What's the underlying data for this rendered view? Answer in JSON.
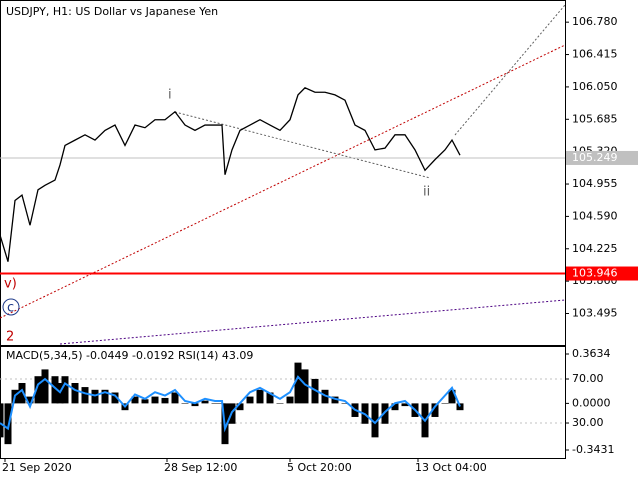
{
  "chart_data": [
    {
      "type": "line",
      "title": "USDJPY, H1:  US Dollar vs Japanese Yen",
      "x": [
        0,
        8,
        15,
        22,
        30,
        38,
        45,
        55,
        60,
        65,
        75,
        85,
        95,
        105,
        115,
        125,
        135,
        145,
        155,
        165,
        175,
        185,
        195,
        205,
        215,
        222,
        225,
        232,
        240,
        250,
        260,
        270,
        280,
        290,
        298,
        305,
        315,
        325,
        335,
        345,
        355,
        365,
        375,
        385,
        395,
        405,
        415,
        425,
        435,
        445,
        452,
        460
      ],
      "series": [
        {
          "color": "#000000",
          "values": [
            104.38,
            104.08,
            104.77,
            104.83,
            104.49,
            104.89,
            104.94,
            105.0,
            105.17,
            105.39,
            105.45,
            105.51,
            105.45,
            105.56,
            105.62,
            105.39,
            105.62,
            105.59,
            105.68,
            105.68,
            105.77,
            105.62,
            105.56,
            105.62,
            105.62,
            105.62,
            105.06,
            105.34,
            105.56,
            105.62,
            105.68,
            105.62,
            105.56,
            105.68,
            105.96,
            106.04,
            105.99,
            105.99,
            105.96,
            105.9,
            105.62,
            105.56,
            105.34,
            105.36,
            105.51,
            105.51,
            105.34,
            105.11,
            105.23,
            105.34,
            105.45,
            105.28
          ]
        }
      ],
      "xlim": [
        0,
        565
      ],
      "xticks": [
        {
          "value": 5,
          "label": "21 Sep 2020"
        },
        {
          "value": 167,
          "label": "28 Sep 12:00"
        },
        {
          "value": 290,
          "label": "5 Oct 20:00"
        },
        {
          "value": 418,
          "label": "13 Oct 04:00"
        }
      ],
      "ylim": [
        103.14,
        107.03
      ],
      "yticks": [
        {
          "value": 106.78,
          "label": "106.780"
        },
        106.415,
        {
          "value": 106.05,
          "label": "106.050"
        },
        105.685,
        {
          "value": 105.32,
          "label": "105.320"
        },
        104.955,
        {
          "value": 104.59,
          "label": "104.590"
        },
        104.225,
        {
          "value": 103.86,
          "label": "103.860"
        },
        103.495
      ],
      "levels": [
        {
          "value": 105.249,
          "color": "#c0c0c0"
        },
        {
          "value": 103.946,
          "color": "#ff0000"
        }
      ],
      "annotations": [
        "i",
        "ii",
        "v)",
        "c",
        "2"
      ]
    },
    {
      "type": "macd",
      "title": "MACD(5,34,5) -0.0449 -0.0192 RSI(14) 43.09",
      "x": [
        0,
        8,
        15,
        22,
        30,
        38,
        45,
        55,
        60,
        65,
        75,
        85,
        95,
        105,
        115,
        125,
        135,
        145,
        155,
        165,
        175,
        185,
        195,
        205,
        215,
        222,
        225,
        232,
        240,
        250,
        260,
        270,
        280,
        290,
        298,
        305,
        315,
        325,
        335,
        345,
        355,
        365,
        375,
        385,
        395,
        405,
        415,
        425,
        435,
        445,
        452,
        460
      ],
      "series": [
        {
          "color": "#000000",
          "values": [
            -0.25,
            -0.3,
            0.1,
            0.15,
            0.05,
            0.2,
            0.25,
            0.2,
            0.15,
            0.2,
            0.15,
            0.12,
            0.1,
            0.1,
            0.08,
            -0.05,
            0.05,
            0.03,
            0.05,
            0.04,
            0.08,
            0.0,
            -0.02,
            0.02,
            0.0,
            0.0,
            -0.3,
            -0.15,
            -0.05,
            0.05,
            0.1,
            0.08,
            0.0,
            0.05,
            0.3,
            0.25,
            0.18,
            0.1,
            0.05,
            0.0,
            -0.1,
            -0.15,
            -0.25,
            -0.15,
            -0.05,
            -0.02,
            -0.1,
            -0.25,
            -0.1,
            0.0,
            0.1,
            -0.05
          ]
        },
        {
          "color": "#1e90ff",
          "axis": "y2",
          "values": [
            30,
            25,
            55,
            60,
            45,
            65,
            70,
            62,
            58,
            66,
            60,
            57,
            55,
            58,
            55,
            45,
            56,
            52,
            58,
            55,
            60,
            50,
            48,
            52,
            50,
            50,
            25,
            40,
            48,
            58,
            62,
            57,
            52,
            58,
            72,
            65,
            60,
            55,
            52,
            50,
            42,
            38,
            30,
            40,
            48,
            50,
            42,
            32,
            45,
            55,
            62,
            45
          ]
        }
      ],
      "xlim": [
        0,
        565
      ],
      "ylim": [
        -0.402,
        0.415
      ],
      "yticks": [
        0.3634,
        {
          "value": 0,
          "label": "0.0000"
        },
        -0.3431
      ],
      "y2lim": [
        -1.8,
        99.1
      ],
      "y2ticks": [
        {
          "value": 70,
          "label": "70.00"
        },
        {
          "value": 30,
          "label": "30.00"
        }
      ]
    }
  ]
}
